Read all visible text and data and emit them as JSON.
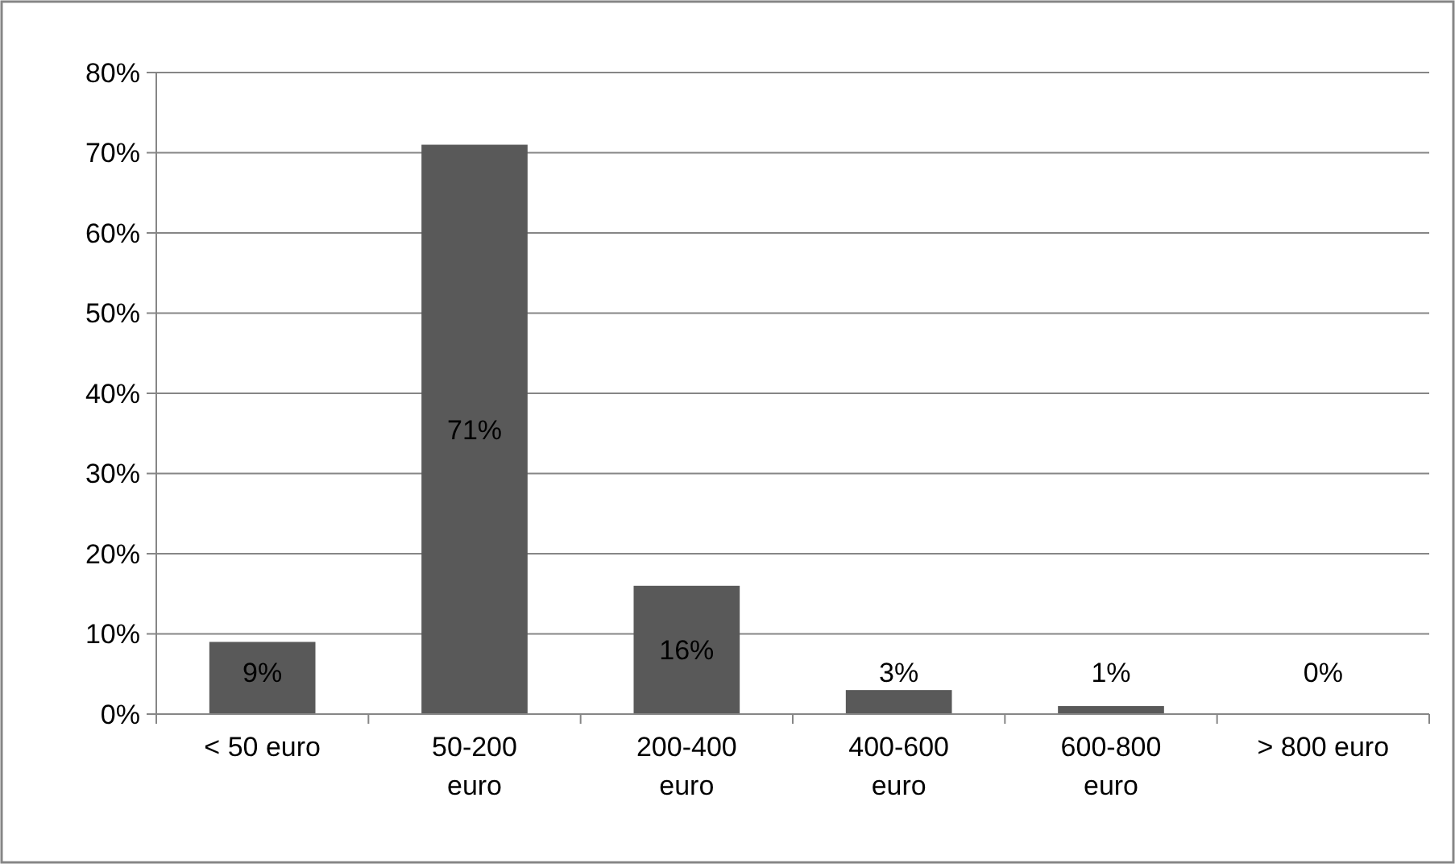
{
  "chart_data": {
    "type": "bar",
    "categories": [
      "< 50 euro",
      "50-200 euro",
      "200-400 euro",
      "400-600 euro",
      "600-800 euro",
      "> 800 euro"
    ],
    "values": [
      9,
      71,
      16,
      3,
      1,
      0
    ],
    "color": "#595959",
    "ylim": [
      0,
      80
    ],
    "yticks": [
      {
        "value": 0,
        "label": "0%"
      },
      {
        "value": 10,
        "label": "10%"
      },
      {
        "value": 20,
        "label": "20%"
      },
      {
        "value": 30,
        "label": "30%"
      },
      {
        "value": 40,
        "label": "40%"
      },
      {
        "value": 50,
        "label": "50%"
      },
      {
        "value": 60,
        "label": "60%"
      },
      {
        "value": 70,
        "label": "70%"
      },
      {
        "value": 80,
        "label": "80%"
      }
    ],
    "value_labels": [
      "9%",
      "71%",
      "16%",
      "3%",
      "1%",
      "0%"
    ],
    "grid": "y"
  }
}
